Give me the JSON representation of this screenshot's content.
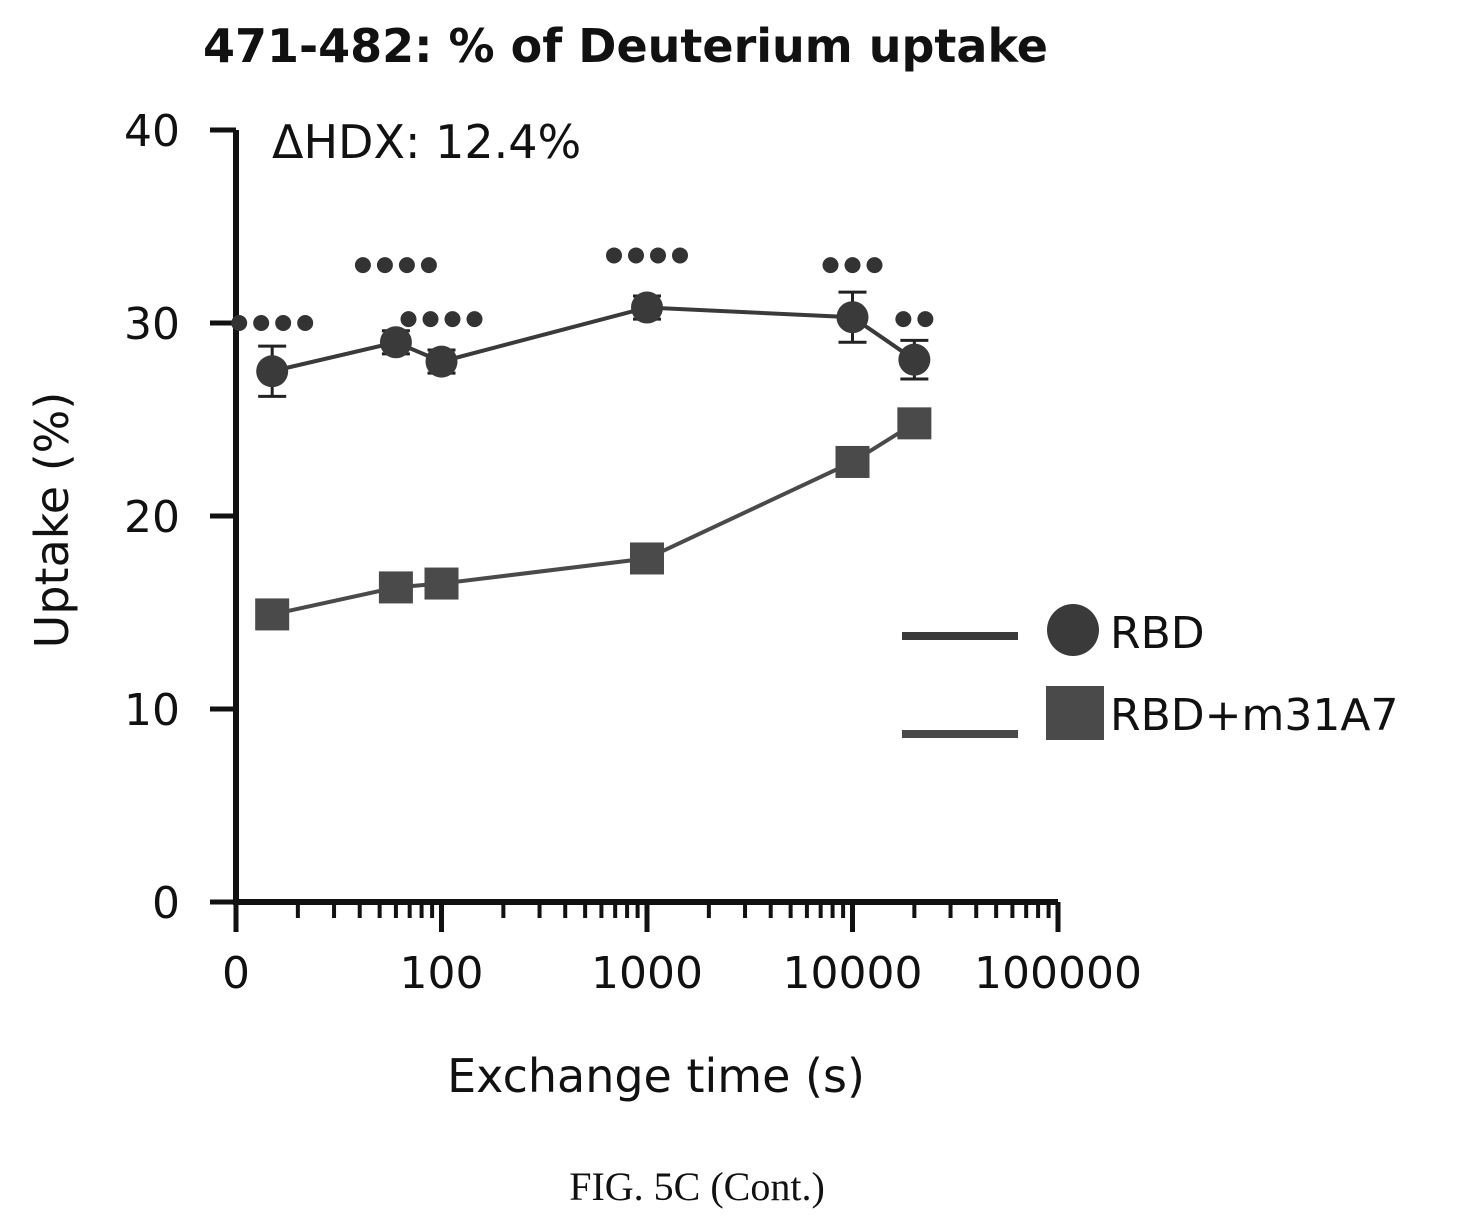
{
  "chart_data": {
    "type": "line",
    "title": "471-482: % of Deuterium uptake",
    "annotation": "ΔHDX: 12.4%",
    "xlabel": "Exchange time (s)",
    "ylabel": "Uptake (%)",
    "xscale": "log",
    "xlim": [
      10,
      100000
    ],
    "ylim": [
      0,
      40
    ],
    "x_tick_labels": [
      "0",
      "100",
      "1000",
      "10000",
      "100000"
    ],
    "y_ticks": [
      0,
      10,
      20,
      30,
      40
    ],
    "legend_position": "right",
    "series": [
      {
        "name": "RBD",
        "marker": "circle",
        "color": "#3a3a3a",
        "x": [
          15,
          60,
          100,
          1000,
          10000,
          20000
        ],
        "y": [
          27.5,
          29.0,
          28.0,
          30.8,
          30.3,
          28.1
        ],
        "error": [
          1.3,
          0.6,
          0.6,
          0.6,
          1.3,
          1.0
        ]
      },
      {
        "name": "RBD+m31A7",
        "marker": "square",
        "color": "#4a4a4a",
        "x": [
          15,
          60,
          100,
          1000,
          10000,
          20000
        ],
        "y": [
          14.9,
          16.3,
          16.5,
          17.8,
          22.8,
          24.8
        ],
        "error": [
          0.5,
          0.4,
          0.4,
          0.5,
          0.5,
          0.4
        ]
      }
    ],
    "significance": [
      {
        "x": 15,
        "y": 30.0,
        "label": "****"
      },
      {
        "x": 60,
        "y": 33.0,
        "label": "****"
      },
      {
        "x": 100,
        "y": 30.2,
        "label": "****"
      },
      {
        "x": 1000,
        "y": 33.5,
        "label": "****"
      },
      {
        "x": 10000,
        "y": 33.0,
        "label": "***"
      },
      {
        "x": 20000,
        "y": 30.2,
        "label": "**"
      }
    ]
  },
  "caption": "FIG. 5C (Cont.)"
}
